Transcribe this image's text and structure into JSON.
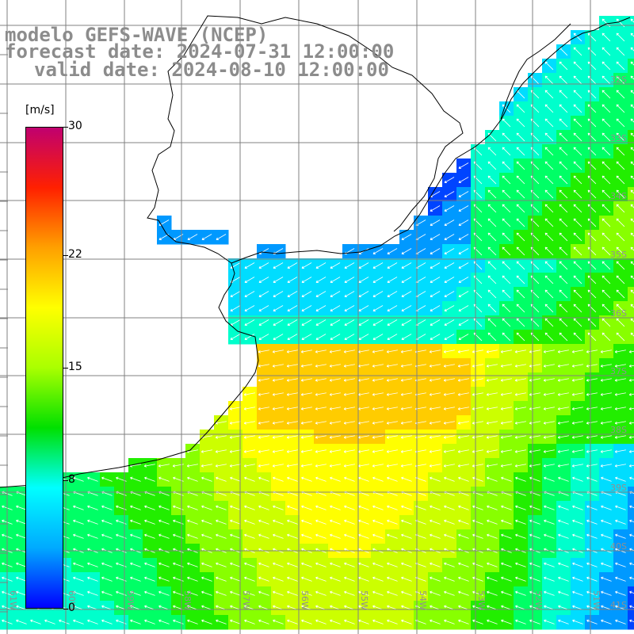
{
  "title": {
    "line1": "modelo GEFS-WAVE (NCEP)",
    "line2": "forecast date: 2024-07-31 12:00:00",
    "line3": "valid date: 2024-08-10 12:00:00"
  },
  "colorbar": {
    "unit": "[m/s]",
    "ticks": [
      "30",
      "22",
      "15",
      "8",
      "0"
    ],
    "tick_values": [
      30,
      22,
      15,
      8,
      0
    ],
    "min": 0,
    "max": 30,
    "colors": [
      "#0000ff",
      "#00aaff",
      "#00ffff",
      "#00e000",
      "#aaff00",
      "#ffff00",
      "#ffa000",
      "#ff2000",
      "#c0006f"
    ]
  },
  "map": {
    "lon_labels": [
      "61W",
      "60W",
      "59W",
      "58W",
      "57W",
      "56W",
      "55W",
      "54W",
      "53W",
      "52W",
      "51W"
    ],
    "lat_labels": [
      "32S",
      "33S",
      "34S",
      "35S",
      "36S",
      "37S",
      "38S",
      "39S",
      "40S",
      "41S"
    ],
    "colors": {
      "land": "#ffffff",
      "coast": "#000000",
      "grid": "#808080",
      "arrow": "#ffffff"
    }
  }
}
